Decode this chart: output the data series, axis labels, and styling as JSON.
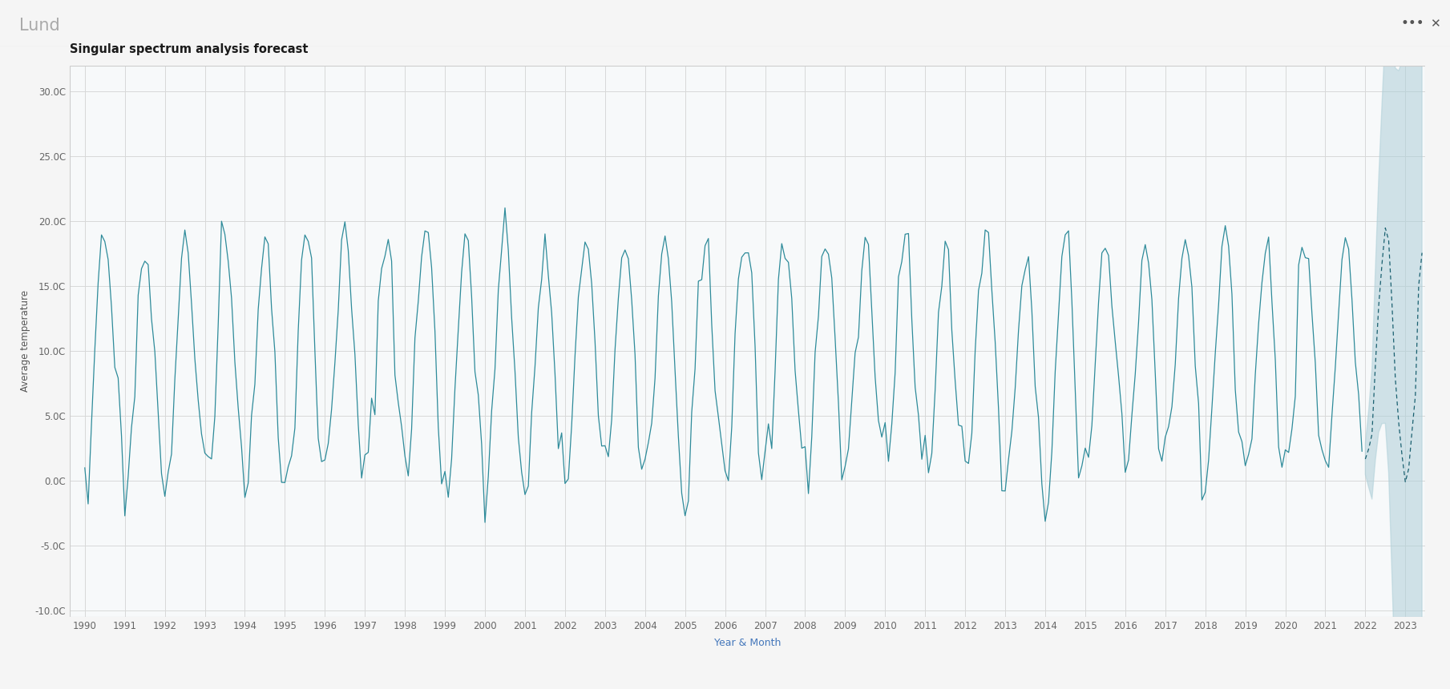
{
  "title": "Singular spectrum analysis forecast",
  "header": "Lund",
  "xlabel": "Year & Month",
  "ylabel": "Average temperature",
  "ylim": [
    -10.5,
    32
  ],
  "yticks": [
    -10.0,
    -5.0,
    0.0,
    5.0,
    10.0,
    15.0,
    20.0,
    25.0,
    30.0
  ],
  "ytick_labels": [
    "-10.0C",
    "-5.0C",
    "0.0C",
    "5.0C",
    "10.0C",
    "15.0C",
    "20.0C",
    "25.0C",
    "30.0C"
  ],
  "line_color": "#2e8b9a",
  "forecast_line_color": "#1a6070",
  "forecast_fill_color": "#aecfd8",
  "background_color": "#ffffff",
  "header_bg": "#ebebeb",
  "plot_bg": "#f7f9fa",
  "grid_color": "#d8d8d8",
  "start_year": 1990,
  "n_hist": 384,
  "n_fore": 18,
  "monthly_means": [
    0.2,
    0.8,
    3.5,
    8.0,
    13.5,
    17.0,
    18.5,
    18.0,
    13.5,
    8.5,
    4.0,
    1.2
  ],
  "monthly_std": [
    2.8,
    2.5,
    2.2,
    1.8,
    1.8,
    1.5,
    1.5,
    1.5,
    1.8,
    2.0,
    2.2,
    2.5
  ]
}
